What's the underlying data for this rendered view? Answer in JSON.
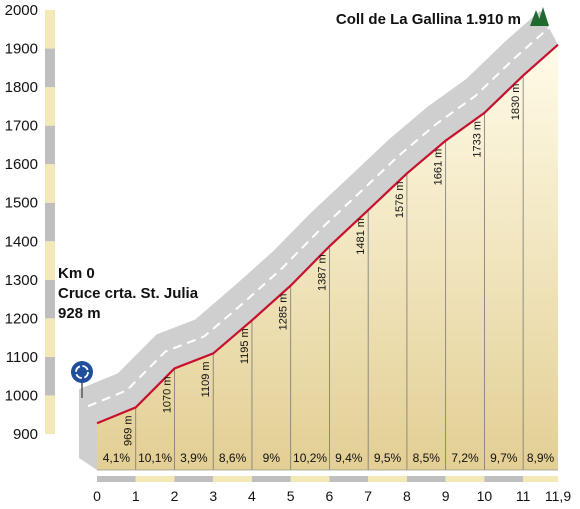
{
  "chart_data": {
    "type": "area",
    "title": "",
    "xlabel": "",
    "ylabel": "",
    "ylim": [
      900,
      2000
    ],
    "xlim": [
      0,
      11.9
    ],
    "y_ticks": [
      900,
      1000,
      1100,
      1200,
      1300,
      1400,
      1500,
      1600,
      1700,
      1800,
      1900,
      2000
    ],
    "x_ticks": [
      "0",
      "1",
      "2",
      "3",
      "4",
      "5",
      "6",
      "7",
      "8",
      "9",
      "10",
      "11",
      "11,9"
    ],
    "profile": {
      "x": [
        0,
        1,
        2,
        3,
        4,
        5,
        6,
        7,
        8,
        9,
        10,
        11,
        11.9
      ],
      "y": [
        928,
        969,
        1070,
        1109,
        1195,
        1285,
        1387,
        1481,
        1576,
        1661,
        1733,
        1830,
        1910
      ]
    },
    "elevation_labels": [
      "969 m",
      "1070 m",
      "1109 m",
      "1195 m",
      "1285 m",
      "1387 m",
      "1481 m",
      "1576 m",
      "1661 m",
      "1733 m",
      "1830 m"
    ],
    "gradients": [
      "4,1%",
      "10,1%",
      "3,9%",
      "8,6%",
      "9%",
      "10,2%",
      "9,4%",
      "9,5%",
      "8,5%",
      "7,2%",
      "9,7%",
      "8,9%"
    ],
    "grid": false,
    "colors": {
      "profile_line": "#c8102e",
      "fill_top": "#fffbe8",
      "fill_bottom": "#e3cf94",
      "road": "#cfcfcf",
      "axis_yellow": "#f4e8b6",
      "axis_gray": "#bfbfbf",
      "summit_icon": "#1f6b2f",
      "roundabout": "#1f4f9c"
    }
  },
  "start": {
    "line1": "Km 0",
    "line2": "Cruce crta. St. Julia",
    "line3": "928 m",
    "icon": "roundabout-icon"
  },
  "summit": {
    "label": "Coll de La Gallina 1.910 m",
    "icon": "mountain-peaks-icon"
  }
}
